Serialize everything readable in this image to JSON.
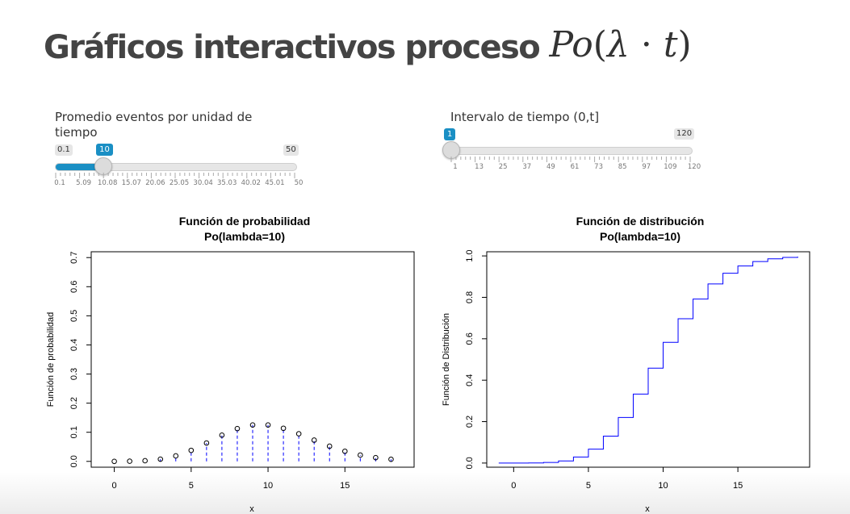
{
  "title": {
    "text": "Gráficos interactivos proceso",
    "math_po": "Po",
    "math_open": "(",
    "math_lambda": "λ",
    "math_dot": "·",
    "math_t": "t",
    "math_close": ")"
  },
  "slider_lambda": {
    "label": "Promedio eventos por unidad de tiempo",
    "min_label": "0.1",
    "max_label": "50",
    "value_label": "10",
    "min": 0.1,
    "max": 50,
    "value": 10,
    "tick_labels": [
      "0.1",
      "5.09",
      "10.08",
      "15.07",
      "20.06",
      "25.05",
      "30.04",
      "35.03",
      "40.02",
      "45.01",
      "50"
    ]
  },
  "slider_t": {
    "label": "Intervalo de tiempo (0,t]",
    "min_label": "1",
    "max_label": "120",
    "value_label": "1",
    "min": 1,
    "max": 120,
    "value": 1,
    "tick_labels": [
      "1",
      "13",
      "25",
      "37",
      "49",
      "61",
      "73",
      "85",
      "97",
      "109",
      "120"
    ]
  },
  "chart_data": [
    {
      "type": "scatter",
      "title": "Función de probabilidad",
      "subtitle": "Po(lambda=10)",
      "xlabel": "x",
      "ylabel": "Función de probabilidad",
      "xlim": [
        -1.5,
        19.5
      ],
      "ylim": [
        -0.02,
        0.72
      ],
      "xticks": [
        0,
        5,
        10,
        15
      ],
      "yticks": [
        0.0,
        0.1,
        0.2,
        0.3,
        0.4,
        0.5,
        0.6,
        0.7
      ],
      "ytick_labels": [
        "0.0",
        "0.1",
        "0.2",
        "0.3",
        "0.4",
        "0.5",
        "0.6",
        "0.7"
      ],
      "x": [
        0,
        1,
        2,
        3,
        4,
        5,
        6,
        7,
        8,
        9,
        10,
        11,
        12,
        13,
        14,
        15,
        16,
        17,
        18
      ],
      "y": [
        0.0,
        0.0005,
        0.0023,
        0.0076,
        0.0189,
        0.0378,
        0.0631,
        0.0901,
        0.1126,
        0.1251,
        0.1251,
        0.1137,
        0.0948,
        0.0729,
        0.0521,
        0.0347,
        0.0217,
        0.0128,
        0.0071
      ],
      "point_color": "#000000",
      "stem_color": "#0000ff"
    },
    {
      "type": "line",
      "title": "Función de distribución",
      "subtitle": "Po(lambda=10)",
      "xlabel": "x",
      "ylabel": "Función de Distribución",
      "xlim": [
        -1.8,
        19.8
      ],
      "ylim": [
        -0.02,
        1.02
      ],
      "xticks": [
        0,
        5,
        10,
        15
      ],
      "yticks": [
        0.0,
        0.2,
        0.4,
        0.6,
        0.8,
        1.0
      ],
      "ytick_labels": [
        "0.0",
        "0.2",
        "0.4",
        "0.6",
        "0.8",
        "1.0"
      ],
      "x_start": -1,
      "x_end": 19,
      "x": [
        0,
        1,
        2,
        3,
        4,
        5,
        6,
        7,
        8,
        9,
        10,
        11,
        12,
        13,
        14,
        15,
        16,
        17,
        18
      ],
      "y": [
        0.0,
        0.0005,
        0.0028,
        0.0103,
        0.0293,
        0.0671,
        0.1301,
        0.2202,
        0.3328,
        0.4579,
        0.583,
        0.6968,
        0.7916,
        0.8645,
        0.9165,
        0.9513,
        0.973,
        0.9857,
        0.9928
      ],
      "y_end": 0.9965,
      "line_color": "#0000ff"
    }
  ]
}
